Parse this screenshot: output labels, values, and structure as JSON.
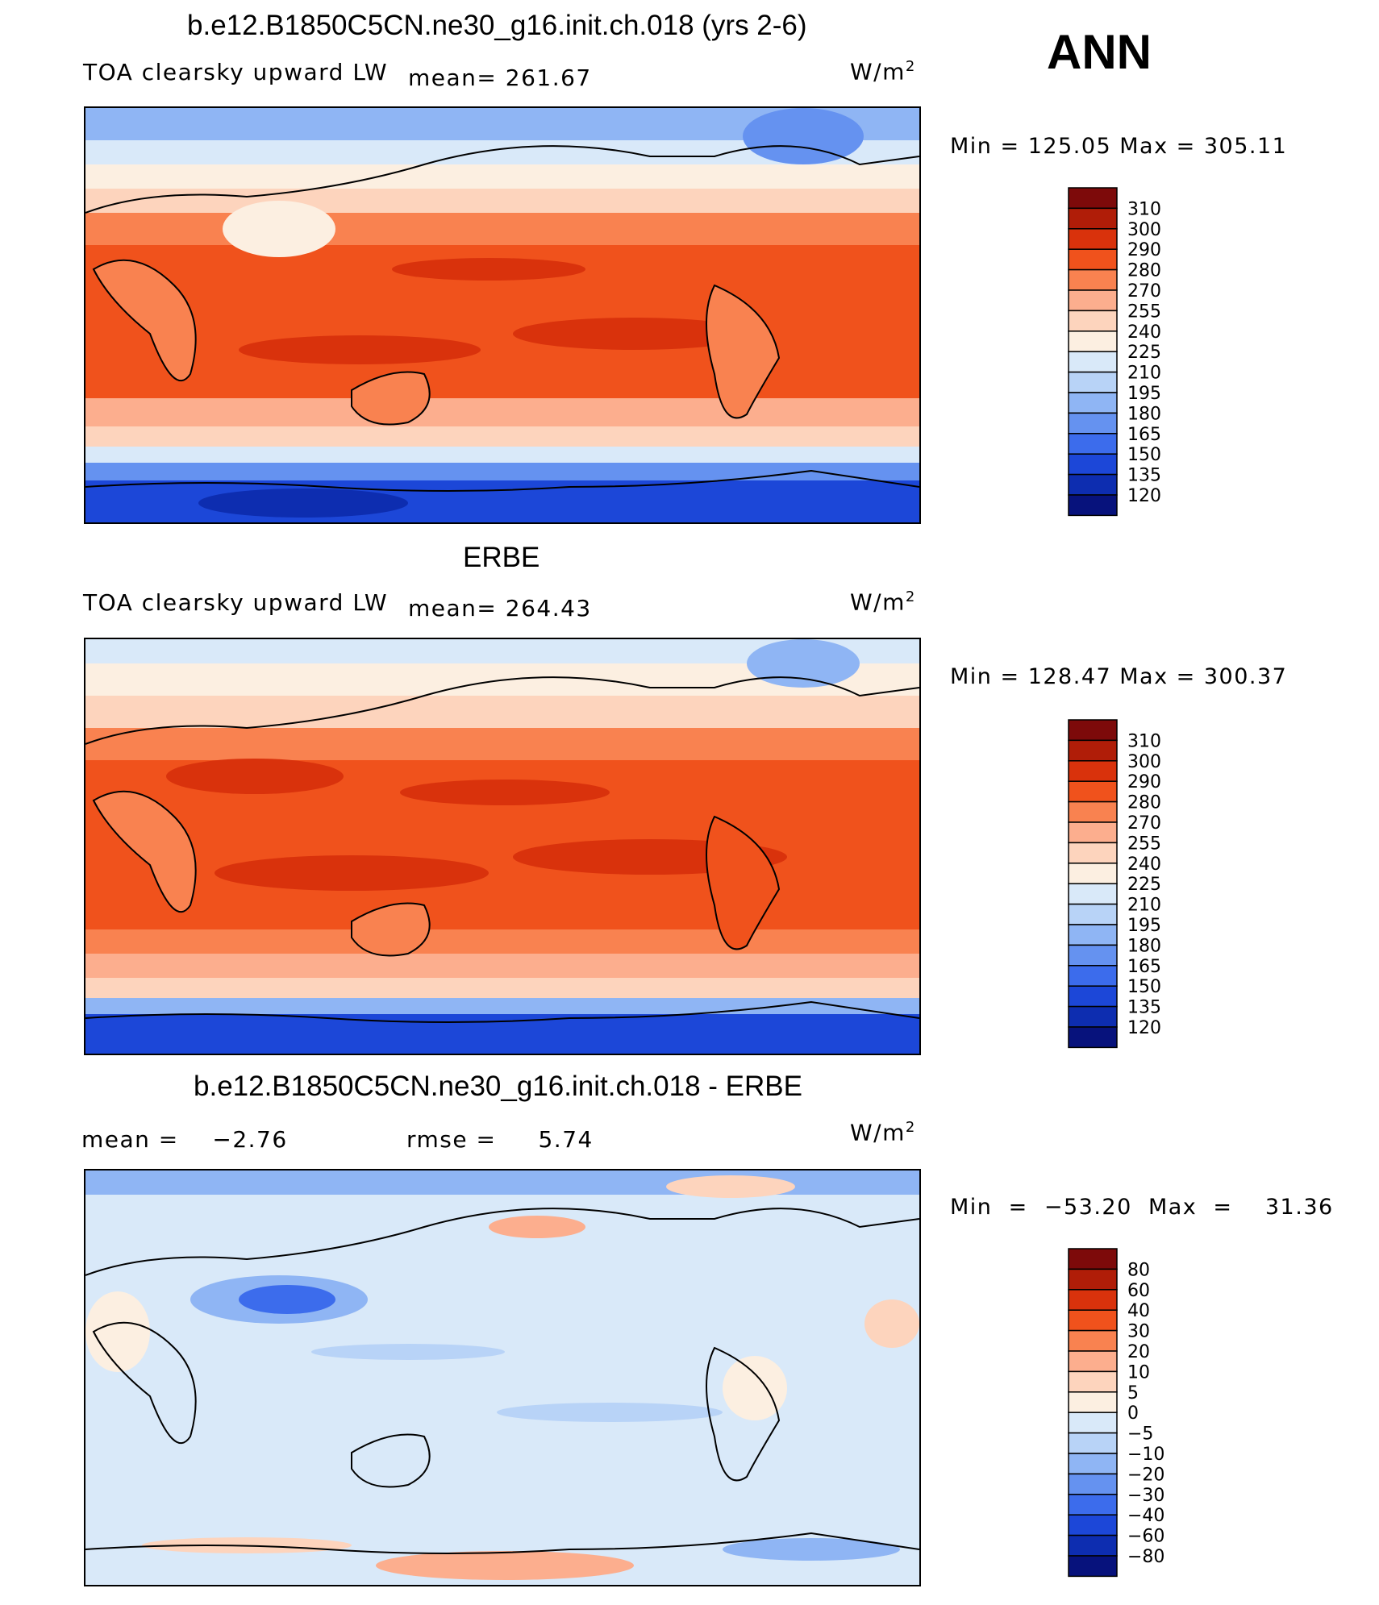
{
  "page": {
    "season": "ANN",
    "units_label": "W/m",
    "units_power": "2"
  },
  "chart_data": [
    {
      "type": "heatmap",
      "title": "b.e12.B1850C5CN.ne30_g16.init.ch.018 (yrs 2-6)",
      "variable": "TOA clearsky upward LW",
      "mean_label": "mean= 261.67",
      "stats": "Min  =  125.05  Max  =  305.11",
      "min": 125.05,
      "max": 305.11,
      "mean": 261.67,
      "colorbar_levels": [
        "310",
        "300",
        "290",
        "280",
        "270",
        "255",
        "240",
        "225",
        "210",
        "195",
        "180",
        "165",
        "150",
        "135",
        "120"
      ],
      "colorbar_colors": [
        "#7d0a0a",
        "#b01d08",
        "#d9320c",
        "#f0521c",
        "#f98250",
        "#fcae8e",
        "#fdd4bd",
        "#fcefe1",
        "#d9e9f9",
        "#b8d3f7",
        "#8fb5f4",
        "#6592f0",
        "#3c6cec",
        "#1c47d8",
        "#0d2db0",
        "#07127c"
      ]
    },
    {
      "type": "heatmap",
      "title": "ERBE",
      "variable": "TOA clearsky upward LW",
      "mean_label": "mean= 264.43",
      "stats": "Min  =  128.47  Max  =  300.37",
      "min": 128.47,
      "max": 300.37,
      "mean": 264.43,
      "colorbar_levels": [
        "310",
        "300",
        "290",
        "280",
        "270",
        "255",
        "240",
        "225",
        "210",
        "195",
        "180",
        "165",
        "150",
        "135",
        "120"
      ],
      "colorbar_colors": [
        "#7d0a0a",
        "#b01d08",
        "#d9320c",
        "#f0521c",
        "#f98250",
        "#fcae8e",
        "#fdd4bd",
        "#fcefe1",
        "#d9e9f9",
        "#b8d3f7",
        "#8fb5f4",
        "#6592f0",
        "#3c6cec",
        "#1c47d8",
        "#0d2db0",
        "#07127c"
      ]
    },
    {
      "type": "heatmap",
      "title": "b.e12.B1850C5CN.ne30_g16.init.ch.018 - ERBE",
      "mean_label": "mean =    −2.76",
      "rmse_label": "rmse =     5.74",
      "stats": "Min  =  −53.20  Max  =    31.36",
      "min": -53.2,
      "max": 31.36,
      "mean": -2.76,
      "rmse": 5.74,
      "colorbar_levels": [
        "80",
        "60",
        "40",
        "30",
        "20",
        "10",
        "5",
        "0",
        "−5",
        "−10",
        "−20",
        "−30",
        "−40",
        "−60",
        "−80"
      ],
      "colorbar_colors": [
        "#7d0a0a",
        "#b01d08",
        "#d9320c",
        "#f0521c",
        "#f98250",
        "#fcae8e",
        "#fdd4bd",
        "#fcefe1",
        "#d9e9f9",
        "#b8d3f7",
        "#8fb5f4",
        "#6592f0",
        "#3c6cec",
        "#1c47d8",
        "#0d2db0",
        "#07127c"
      ]
    }
  ]
}
